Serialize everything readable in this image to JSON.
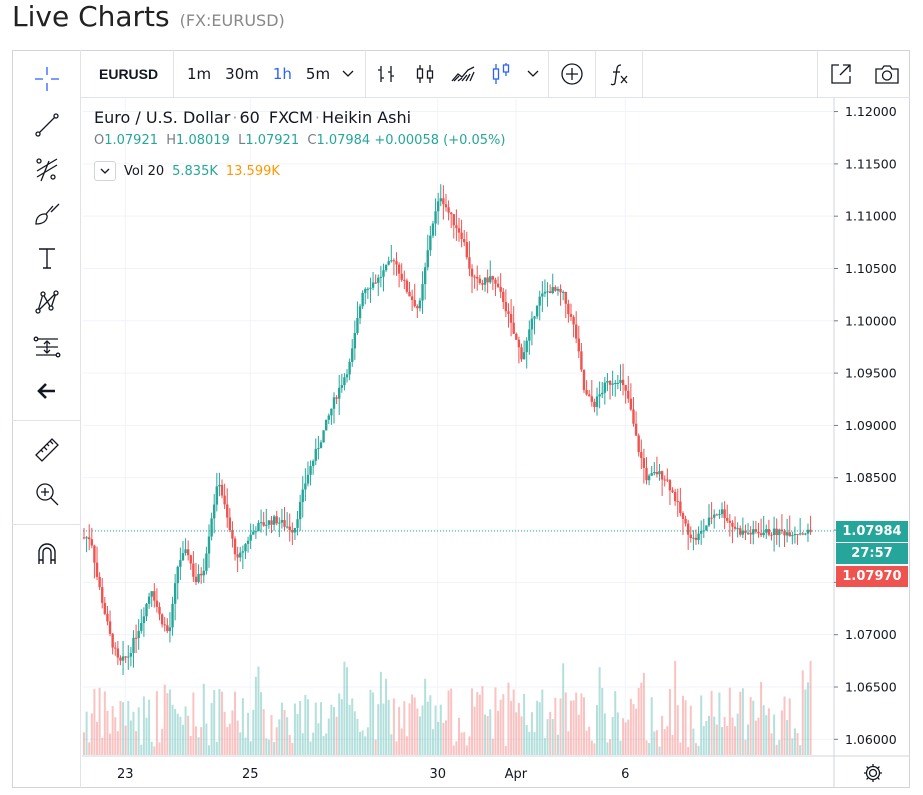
{
  "page": {
    "title": "Live Charts",
    "symbol": "(FX:EURUSD)"
  },
  "toolbar": {
    "symbol": "EURUSD",
    "intervals": [
      {
        "label": "1m",
        "active": false
      },
      {
        "label": "30m",
        "active": false
      },
      {
        "label": "1h",
        "active": true
      },
      {
        "label": "5m",
        "active": false
      }
    ],
    "icons": [
      "chevron-down-icon",
      "bar-chart-icon",
      "candles-icon",
      "area-chart-icon",
      "heikin-ashi-icon",
      "chevron-down-icon",
      "add-compare-icon",
      "indicators-fx-icon",
      "popout-icon",
      "camera-icon"
    ]
  },
  "left_tools": [
    "crosshair-icon",
    "trend-line-icon",
    "fib-icon",
    "brush-icon",
    "text-tool-icon",
    "pattern-icon",
    "prediction-icon",
    "back-arrow-icon",
    "ruler-icon",
    "zoom-icon",
    "magnet-icon"
  ],
  "legend": {
    "name": "Euro / U.S. Dollar",
    "interval": "60",
    "source": "FXCM",
    "style": "Heikin Ashi",
    "o_key": "O",
    "o": "1.07921",
    "h_key": "H",
    "h": "1.08019",
    "l_key": "L",
    "l": "1.07921",
    "c_key": "C",
    "c": "1.07984",
    "change": "+0.00058 (+0.05%)"
  },
  "volume": {
    "label": "Vol 20",
    "v1": "5.835K",
    "v2": "13.599K",
    "v1_color": "#26a69a",
    "v2_color": "#ff9800"
  },
  "price_tags": {
    "last": "1.07984",
    "countdown": "27:57",
    "other": "1.07970"
  },
  "colors": {
    "up": "#26a69a",
    "down": "#ef5350",
    "accent": "#2962ff"
  },
  "chart_data": {
    "type": "candlestick",
    "style": "Heikin Ashi",
    "title": "Euro / U.S. Dollar",
    "y_ticks": [
      1.12,
      1.115,
      1.11,
      1.105,
      1.1,
      1.095,
      1.09,
      1.085,
      1.08,
      1.075,
      1.07,
      1.065,
      1.06
    ],
    "y_tick_labels": [
      "1.12000",
      "1.11500",
      "1.11000",
      "1.10500",
      "1.10000",
      "1.09500",
      "1.09000",
      "1.08500",
      "1.08000",
      "1.07500",
      "1.07000",
      "1.06500",
      "1.06000"
    ],
    "ylim": [
      1.0585,
      1.1212
    ],
    "x_ticks": [
      {
        "label": "23",
        "day": 0.5
      },
      {
        "label": "25",
        "day": 2.5
      },
      {
        "label": "30",
        "day": 5.5
      },
      {
        "label": "Apr",
        "day": 6.75
      },
      {
        "label": "6",
        "day": 8.5
      }
    ],
    "xlim_days": [
      -0.2,
      9.4
    ],
    "grid": true,
    "last_price": 1.07984,
    "key_points": [
      {
        "day": -0.05,
        "price": 1.0793
      },
      {
        "day": 0.05,
        "price": 1.0755
      },
      {
        "day": 0.25,
        "price": 1.07
      },
      {
        "day": 0.4,
        "price": 1.0672
      },
      {
        "day": 0.55,
        "price": 1.068
      },
      {
        "day": 0.75,
        "price": 1.0712
      },
      {
        "day": 0.92,
        "price": 1.0745
      },
      {
        "day": 1.05,
        "price": 1.0718
      },
      {
        "day": 1.2,
        "price": 1.07
      },
      {
        "day": 1.35,
        "price": 1.077
      },
      {
        "day": 1.5,
        "price": 1.078
      },
      {
        "day": 1.62,
        "price": 1.075
      },
      {
        "day": 1.75,
        "price": 1.0762
      },
      {
        "day": 1.9,
        "price": 1.082
      },
      {
        "day": 2.0,
        "price": 1.0848
      },
      {
        "day": 2.15,
        "price": 1.0805
      },
      {
        "day": 2.3,
        "price": 1.077
      },
      {
        "day": 2.45,
        "price": 1.079
      },
      {
        "day": 2.6,
        "price": 1.0803
      },
      {
        "day": 2.9,
        "price": 1.081
      },
      {
        "day": 3.2,
        "price": 1.08
      },
      {
        "day": 3.4,
        "price": 1.085
      },
      {
        "day": 3.65,
        "price": 1.089
      },
      {
        "day": 3.85,
        "price": 1.0925
      },
      {
        "day": 4.1,
        "price": 1.096
      },
      {
        "day": 4.3,
        "price": 1.103
      },
      {
        "day": 4.55,
        "price": 1.104
      },
      {
        "day": 4.8,
        "price": 1.106
      },
      {
        "day": 5.0,
        "price": 1.103
      },
      {
        "day": 5.2,
        "price": 1.101
      },
      {
        "day": 5.4,
        "price": 1.109
      },
      {
        "day": 5.55,
        "price": 1.112
      },
      {
        "day": 5.7,
        "price": 1.11
      },
      {
        "day": 5.9,
        "price": 1.108
      },
      {
        "day": 6.05,
        "price": 1.104
      },
      {
        "day": 6.2,
        "price": 1.1035
      },
      {
        "day": 6.35,
        "price": 1.1042
      },
      {
        "day": 6.55,
        "price": 1.102
      },
      {
        "day": 6.7,
        "price": 1.099
      },
      {
        "day": 6.85,
        "price": 1.0965
      },
      {
        "day": 6.95,
        "price": 1.0985
      },
      {
        "day": 7.1,
        "price": 1.102
      },
      {
        "day": 7.3,
        "price": 1.103
      },
      {
        "day": 7.5,
        "price": 1.1025
      },
      {
        "day": 7.7,
        "price": 1.099
      },
      {
        "day": 7.85,
        "price": 1.093
      },
      {
        "day": 8.0,
        "price": 1.092
      },
      {
        "day": 8.2,
        "price": 1.094
      },
      {
        "day": 8.4,
        "price": 1.0945
      },
      {
        "day": 8.55,
        "price": 1.0925
      },
      {
        "day": 8.7,
        "price": 1.088
      },
      {
        "day": 8.85,
        "price": 1.0848
      },
      {
        "day": 9.0,
        "price": 1.0855
      },
      {
        "day": 9.15,
        "price": 1.085
      },
      {
        "day": 9.3,
        "price": 1.083
      },
      {
        "day": 9.45,
        "price": 1.0805
      },
      {
        "day": 9.6,
        "price": 1.079
      },
      {
        "day": 9.75,
        "price": 1.08
      },
      {
        "day": 9.9,
        "price": 1.0815
      },
      {
        "day": 10.05,
        "price": 1.0818
      },
      {
        "day": 10.2,
        "price": 1.0805
      },
      {
        "day": 10.35,
        "price": 1.0798
      },
      {
        "day": 10.5,
        "price": 1.0797
      },
      {
        "day": 10.65,
        "price": 1.0798
      }
    ]
  }
}
